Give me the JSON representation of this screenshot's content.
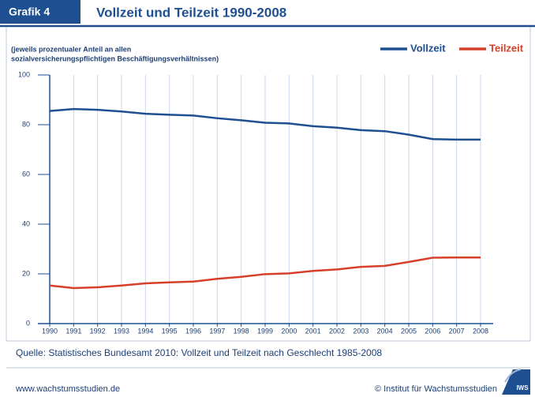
{
  "header": {
    "label": "Grafik 4"
  },
  "chart_data": {
    "type": "line",
    "title": "Vollzeit und Teilzeit 1990-2008",
    "subtitle": [
      "(jeweils prozentualer Anteil an allen",
      "sozialversicherungspflichtigen Beschäftigungsverhältnissen)"
    ],
    "x": [
      1990,
      1991,
      1992,
      1993,
      1994,
      1995,
      1996,
      1997,
      1998,
      1999,
      2000,
      2001,
      2002,
      2003,
      2004,
      2005,
      2006,
      2007,
      2008
    ],
    "series": [
      {
        "name": "Vollzeit",
        "color": "#1d4f91",
        "values": [
          85.5,
          86.3,
          86.0,
          85.3,
          84.4,
          84.0,
          83.7,
          82.6,
          81.8,
          80.8,
          80.5,
          79.4,
          78.8,
          77.8,
          77.4,
          76.0,
          74.2,
          74.0,
          74.0
        ]
      },
      {
        "name": "Teilzeit",
        "color": "#d6402b",
        "values": [
          15.3,
          14.3,
          14.6,
          15.3,
          16.2,
          16.6,
          16.9,
          18.0,
          18.8,
          19.9,
          20.2,
          21.2,
          21.8,
          22.8,
          23.2,
          24.8,
          26.5,
          26.6,
          26.6
        ]
      }
    ],
    "xlim": [
      1990,
      2008
    ],
    "xticks": [
      1990,
      1991,
      1992,
      1993,
      1994,
      1995,
      1996,
      1997,
      1998,
      1999,
      2000,
      2001,
      2002,
      2003,
      2004,
      2005,
      2006,
      2007,
      2008
    ],
    "ylim": [
      0,
      100
    ],
    "yticks": [
      0,
      20,
      40,
      60,
      80,
      100
    ],
    "grid": "x",
    "legend": "upper right"
  },
  "footer": {
    "source": "Quelle:  Statistisches Bundesamt 2010: Vollzeit und Teilzeit nach Geschlecht 1985-2008",
    "website": "www.wachstumsstudien.de",
    "copyright": "© Institut für Wachstumsstudien",
    "logo": "IWS"
  }
}
